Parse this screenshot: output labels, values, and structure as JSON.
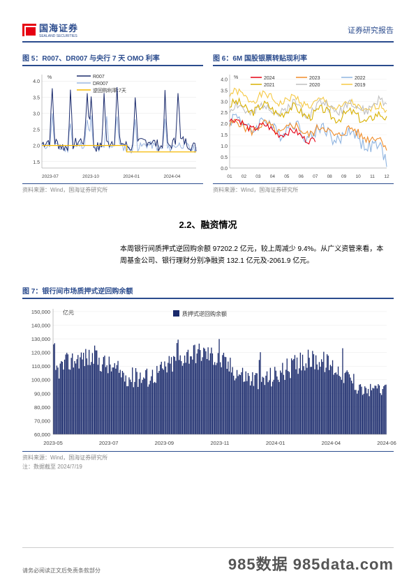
{
  "header": {
    "logo_text": "国海证券",
    "logo_sub": "SEALAND SECURITIES",
    "right": "证券研究报告"
  },
  "fig5": {
    "title": "图 5：R007、DR007 与央行 7 天 OMO 利率",
    "ylabel": "%",
    "legend": [
      "R007",
      "DR007",
      "逆回购利率:7天"
    ],
    "colors": {
      "r007": "#1a2a6c",
      "dr007": "#9ab5e0",
      "omo": "#f5b800"
    },
    "xticks": [
      "2023-07",
      "2023-10",
      "2024-01",
      "2024-04"
    ],
    "yticks": [
      1.5,
      2.0,
      2.5,
      3.0,
      3.5,
      4.0
    ],
    "ylim": [
      1.3,
      4.2
    ],
    "source": "资料来源：Wind，国海证券研究所"
  },
  "fig6": {
    "title": "图 6：6M 国股银票转贴现利率",
    "ylabel": "%",
    "legend_top": [
      "2024",
      "2023",
      "2022"
    ],
    "legend_bot": [
      "2021",
      "2020",
      "2019"
    ],
    "colors": {
      "2024": "#e60012",
      "2023": "#f08c28",
      "2022": "#8fb4e0",
      "2021": "#d8b000",
      "2020": "#bfbfbf",
      "2019": "#f5c843"
    },
    "xticks": [
      "01",
      "02",
      "03",
      "04",
      "05",
      "06",
      "07",
      "08",
      "09",
      "10",
      "11",
      "12"
    ],
    "yticks": [
      0.0,
      0.5,
      1.0,
      1.5,
      2.0,
      2.5,
      3.0,
      3.5,
      4.0
    ],
    "ylim": [
      0,
      4.2
    ],
    "source": "资料来源：Wind，国海证券研究所"
  },
  "section": {
    "title": "2.2、融资情况",
    "body": "本周银行间质押式逆回购余额 97202.2 亿元，较上周减少 9.4%。从广义资管来看，本周基金公司、银行理财分别净融资 132.1 亿元及-2061.9 亿元。"
  },
  "fig7": {
    "title": "图 7：银行间市场质押式逆回购余额",
    "ylabel": "亿元",
    "legend": "质押式逆回购余额",
    "bar_color": "#1a2a6c",
    "xticks": [
      "2023-05",
      "2023-07",
      "2023-09",
      "2023-11",
      "2024-01",
      "2024-04",
      "2024-06"
    ],
    "yticks": [
      60000,
      70000,
      80000,
      90000,
      100000,
      110000,
      120000,
      130000,
      140000,
      150000
    ],
    "ylim": [
      60000,
      152000
    ],
    "source": "资料来源：Wind，国海证券研究所",
    "note": "注：数据截至 2024/7/19"
  },
  "footer": {
    "left": "请务必阅读正文后免责条款部分",
    "watermark": "985数据 985data.com"
  }
}
